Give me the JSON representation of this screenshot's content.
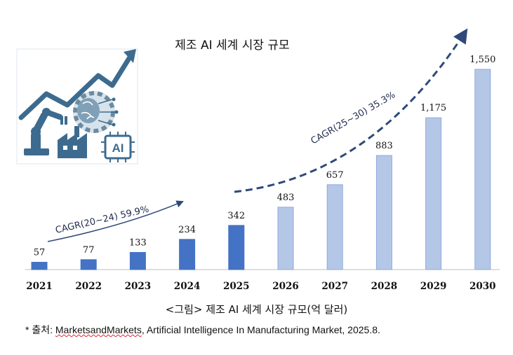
{
  "chart_data": {
    "type": "bar",
    "title": "제조 AI 세계 시장 규모",
    "categories": [
      "2021",
      "2022",
      "2023",
      "2024",
      "2025",
      "2026",
      "2027",
      "2028",
      "2029",
      "2030"
    ],
    "values": [
      57,
      77,
      133,
      234,
      342,
      483,
      657,
      883,
      1175,
      1550
    ],
    "value_labels": [
      "57",
      "77",
      "133",
      "234",
      "342",
      "483",
      "657",
      "883",
      "1,175",
      "1,550"
    ],
    "ylim": [
      0,
      1550
    ],
    "grid": false,
    "colors": {
      "actual": "#4472c4",
      "forecast": "#b4c7e7",
      "forecast_border": "#8faadc",
      "arrow": "#2f4a7a"
    },
    "forecast_from_index": 5,
    "annotations": [
      {
        "text": "CAGR(20~24) 59.9%",
        "style": "solid-arrow"
      },
      {
        "text": "CAGR(25~30) 35.3%",
        "style": "dashed-arrow"
      }
    ]
  },
  "caption": "<그림> 제조 AI 세계 시장 규모(억 달러)",
  "source": {
    "prefix": "* 출처: ",
    "publisher": "MarketsandMarkets",
    "rest": ", Artificial Intelligence In Manufacturing Market, 2025.8."
  },
  "illustration": {
    "badge_text": "AI",
    "icons": [
      "trend-arrow-icon",
      "robot-arm-icon",
      "brain-gear-icon",
      "factory-icon",
      "ai-chip-icon"
    ]
  }
}
